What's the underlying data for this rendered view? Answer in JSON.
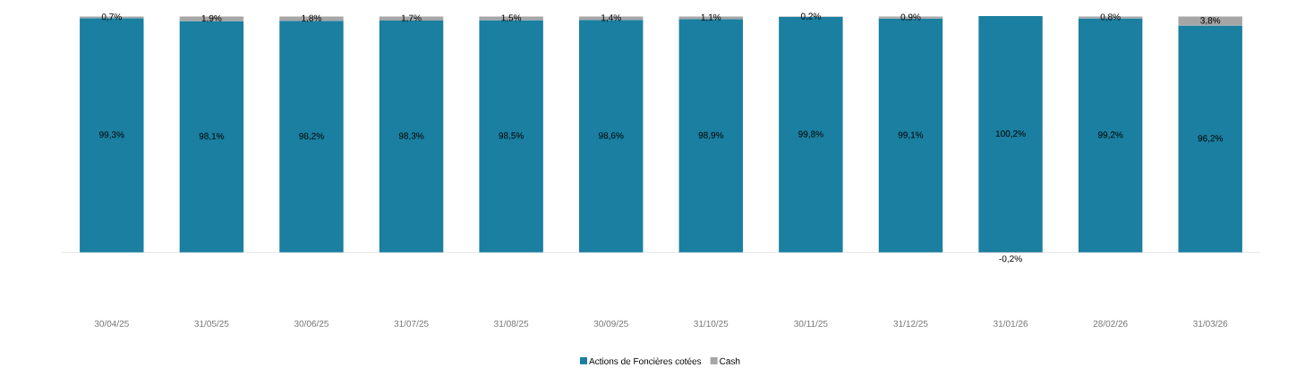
{
  "chart_data": {
    "type": "bar",
    "stacked": true,
    "legend": "bottom",
    "categories": [
      "30/04/25",
      "31/05/25",
      "30/06/25",
      "31/07/25",
      "31/08/25",
      "30/09/25",
      "31/10/25",
      "30/11/25",
      "31/12/25",
      "31/01/26",
      "28/02/26",
      "31/03/26"
    ],
    "series": [
      {
        "name": "Actions de Foncières cotées",
        "color": "#1a7fa0",
        "values": [
          99.3,
          98.1,
          98.2,
          98.3,
          98.5,
          98.6,
          98.9,
          99.8,
          99.1,
          100.2,
          99.2,
          96.2
        ],
        "value_labels": [
          "99,3%",
          "98,1%",
          "98,2%",
          "98,3%",
          "98,5%",
          "98,6%",
          "98,9%",
          "99,8%",
          "99,1%",
          "100,2%",
          "99,2%",
          "96,2%"
        ]
      },
      {
        "name": "Cash",
        "color": "#a6a6a6",
        "values": [
          0.7,
          1.9,
          1.8,
          1.7,
          1.5,
          1.4,
          1.1,
          0.2,
          0.9,
          -0.2,
          0.8,
          3.8
        ],
        "value_labels": [
          "0,7%",
          "1,9%",
          "1,8%",
          "1,7%",
          "1,5%",
          "1,4%",
          "1,1%",
          "0,2%",
          "0,9%",
          "-0,2%",
          "0,8%",
          "3,8%"
        ]
      }
    ]
  }
}
